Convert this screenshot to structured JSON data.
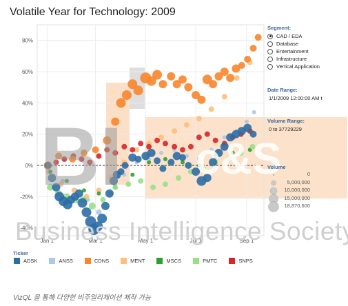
{
  "title": "Volatile Year for Technology: 2009",
  "segment": {
    "header": "Segment:",
    "options": [
      "CAD / EDA",
      "Database",
      "Entertainment",
      "Infrastructure",
      "Vertical Application"
    ],
    "selected": 0
  },
  "date_range": {
    "header": "Date Range:",
    "value": "1/1/2009 12:00:00 AM t"
  },
  "volume_range": {
    "header": "Volume Range:",
    "value": "0 to 37729229"
  },
  "volume_legend": {
    "header": "Volume",
    "items": [
      "0",
      "5,000,000",
      "10,000,000",
      "15,000,000",
      "18,870,600"
    ]
  },
  "legend": {
    "title": "Ticker",
    "items": [
      {
        "name": "ADSK",
        "color": "#2e6da4"
      },
      {
        "name": "ANSS",
        "color": "#aec7e8"
      },
      {
        "name": "CDNS",
        "color": "#f7862c"
      },
      {
        "name": "MENT",
        "color": "#ffbe7d"
      },
      {
        "name": "MSCS",
        "color": "#2ca02c"
      },
      {
        "name": "PMTC",
        "color": "#98df8a"
      },
      {
        "name": "SNPS",
        "color": "#d62728"
      }
    ]
  },
  "watermark": {
    "main": "Business Intelligence Society",
    "logo": "BI",
    "logo_right": "c&S"
  },
  "caption": "VizQL 을 통해 다양한 비주얼리제이션 제작 가능",
  "chart_data": {
    "type": "scatter",
    "x_tick_labels": [
      "Jan 1",
      "Mar 1",
      "May 1",
      "Jul 1",
      "Sep 1"
    ],
    "y_tick_labels": [
      "80%",
      "60%",
      "40%",
      "20%",
      "0%",
      "-20%",
      "-40%"
    ],
    "y_ticks": [
      80,
      60,
      40,
      20,
      0,
      -20,
      -40
    ],
    "ylim": [
      -45,
      90
    ],
    "xlim": [
      "2008-12-20",
      "2009-09-22"
    ],
    "reference_line": 0,
    "series": [
      {
        "name": "ADSK",
        "color": "#2e6da4",
        "x": [
          "2009-01-02",
          "2009-01-07",
          "2009-01-12",
          "2009-01-16",
          "2009-01-21",
          "2009-01-26",
          "2009-01-30",
          "2009-02-04",
          "2009-02-09",
          "2009-02-13",
          "2009-02-18",
          "2009-02-23",
          "2009-02-27",
          "2009-03-04",
          "2009-03-09",
          "2009-03-13",
          "2009-03-18",
          "2009-03-23",
          "2009-03-27",
          "2009-04-01",
          "2009-04-06",
          "2009-04-15",
          "2009-04-22",
          "2009-05-01",
          "2009-05-08",
          "2009-05-15",
          "2009-05-22",
          "2009-06-01",
          "2009-06-08",
          "2009-06-15",
          "2009-06-22",
          "2009-07-01",
          "2009-07-08",
          "2009-07-15",
          "2009-07-22",
          "2009-07-29",
          "2009-08-05",
          "2009-08-12",
          "2009-08-19",
          "2009-08-26",
          "2009-09-02",
          "2009-09-09"
        ],
        "y": [
          0,
          -8,
          -14,
          -20,
          -23,
          -25,
          -22,
          -20,
          -18,
          -24,
          -30,
          -36,
          -41,
          -39,
          -34,
          -26,
          -18,
          -10,
          -6,
          -4,
          0,
          5,
          4,
          6,
          8,
          3,
          -2,
          2,
          6,
          5,
          0,
          -4,
          -10,
          -8,
          2,
          8,
          12,
          18,
          20,
          22,
          24,
          20
        ],
        "size": [
          5,
          6,
          6,
          7,
          7,
          7,
          6,
          6,
          6,
          7,
          7,
          8,
          8,
          7,
          7,
          6,
          6,
          6,
          6,
          5,
          5,
          6,
          5,
          6,
          6,
          5,
          5,
          5,
          6,
          5,
          5,
          6,
          7,
          6,
          6,
          6,
          6,
          6,
          6,
          6,
          6,
          5
        ]
      },
      {
        "name": "ANSS",
        "color": "#aec7e8",
        "x": [
          "2009-01-05",
          "2009-01-20",
          "2009-02-05",
          "2009-02-20",
          "2009-03-05",
          "2009-03-20",
          "2009-04-05",
          "2009-04-20",
          "2009-05-05",
          "2009-05-20",
          "2009-06-05",
          "2009-06-20",
          "2009-07-05",
          "2009-07-20",
          "2009-08-05",
          "2009-08-20",
          "2009-09-01",
          "2009-09-10"
        ],
        "y": [
          -4,
          -10,
          -16,
          -22,
          -30,
          -18,
          -6,
          2,
          4,
          8,
          10,
          6,
          4,
          10,
          18,
          22,
          28,
          34
        ],
        "size": [
          3,
          3,
          3,
          3,
          4,
          3,
          3,
          3,
          3,
          3,
          3,
          3,
          3,
          3,
          3,
          3,
          3,
          3
        ]
      },
      {
        "name": "CDNS",
        "color": "#f7862c",
        "x": [
          "2009-01-02",
          "2009-01-15",
          "2009-02-01",
          "2009-02-15",
          "2009-03-01",
          "2009-03-15",
          "2009-03-25",
          "2009-04-01",
          "2009-04-08",
          "2009-04-15",
          "2009-04-22",
          "2009-05-01",
          "2009-05-08",
          "2009-05-15",
          "2009-05-22",
          "2009-06-01",
          "2009-06-08",
          "2009-06-15",
          "2009-06-22",
          "2009-07-01",
          "2009-07-08",
          "2009-07-15",
          "2009-07-22",
          "2009-07-29",
          "2009-08-05",
          "2009-08-12",
          "2009-08-19",
          "2009-08-26",
          "2009-09-02",
          "2009-09-09",
          "2009-09-15"
        ],
        "y": [
          0,
          6,
          4,
          8,
          10,
          16,
          28,
          40,
          45,
          52,
          48,
          56,
          54,
          58,
          52,
          57,
          52,
          55,
          50,
          45,
          42,
          55,
          52,
          57,
          60,
          56,
          62,
          64,
          68,
          75,
          82
        ],
        "size": [
          6,
          5,
          5,
          5,
          5,
          6,
          6,
          7,
          7,
          7,
          7,
          8,
          7,
          7,
          6,
          6,
          6,
          6,
          6,
          6,
          6,
          7,
          6,
          6,
          6,
          6,
          6,
          5,
          5,
          5,
          5
        ]
      },
      {
        "name": "MENT",
        "color": "#ffbe7d",
        "x": [
          "2009-01-03",
          "2009-01-18",
          "2009-02-03",
          "2009-02-18",
          "2009-03-05",
          "2009-03-20",
          "2009-04-05",
          "2009-04-20",
          "2009-05-05",
          "2009-05-20",
          "2009-06-05",
          "2009-06-20",
          "2009-07-05",
          "2009-07-20",
          "2009-08-05",
          "2009-08-20",
          "2009-09-05"
        ],
        "y": [
          -4,
          -12,
          -16,
          -20,
          -16,
          -8,
          2,
          10,
          14,
          18,
          22,
          26,
          30,
          36,
          44,
          56,
          66
        ],
        "size": [
          4,
          4,
          4,
          4,
          4,
          4,
          4,
          4,
          4,
          4,
          4,
          4,
          4,
          4,
          4,
          4,
          4
        ]
      },
      {
        "name": "MSCS",
        "color": "#2ca02c",
        "x": [
          "2009-01-05",
          "2009-01-25",
          "2009-02-15",
          "2009-03-05",
          "2009-03-25",
          "2009-04-15",
          "2009-05-05",
          "2009-05-25",
          "2009-06-15",
          "2009-07-05",
          "2009-07-25",
          "2009-08-15",
          "2009-09-05"
        ],
        "y": [
          -4,
          -10,
          -16,
          -18,
          -14,
          -6,
          2,
          4,
          2,
          0,
          6,
          8,
          10
        ],
        "size": [
          3,
          3,
          3,
          3,
          3,
          3,
          3,
          3,
          3,
          3,
          3,
          3,
          3
        ]
      },
      {
        "name": "PMTC",
        "color": "#98df8a",
        "x": [
          "2009-01-05",
          "2009-01-15",
          "2009-01-25",
          "2009-02-05",
          "2009-02-15",
          "2009-02-25",
          "2009-03-10",
          "2009-03-25",
          "2009-04-10",
          "2009-04-25",
          "2009-05-10",
          "2009-05-25",
          "2009-06-10",
          "2009-06-25",
          "2009-07-10",
          "2009-07-25",
          "2009-08-10",
          "2009-08-25",
          "2009-09-08"
        ],
        "y": [
          -14,
          -18,
          -20,
          -22,
          -22,
          -26,
          -22,
          -14,
          -12,
          -10,
          -14,
          -12,
          -8,
          -4,
          -2,
          2,
          4,
          8,
          12
        ],
        "size": [
          5,
          5,
          5,
          5,
          5,
          5,
          4,
          4,
          4,
          4,
          4,
          4,
          4,
          4,
          4,
          4,
          4,
          4,
          4
        ]
      },
      {
        "name": "SNPS",
        "color": "#d62728",
        "x": [
          "2009-01-02",
          "2009-01-12",
          "2009-01-22",
          "2009-02-02",
          "2009-02-12",
          "2009-02-22",
          "2009-03-05",
          "2009-03-15",
          "2009-03-25",
          "2009-04-05",
          "2009-04-15",
          "2009-04-25",
          "2009-05-05",
          "2009-05-15",
          "2009-05-25",
          "2009-06-05",
          "2009-06-15",
          "2009-06-25",
          "2009-07-05",
          "2009-07-15",
          "2009-07-25",
          "2009-08-05",
          "2009-08-15",
          "2009-08-25",
          "2009-09-05"
        ],
        "y": [
          0,
          2,
          4,
          6,
          4,
          2,
          6,
          10,
          8,
          12,
          10,
          14,
          12,
          16,
          14,
          12,
          10,
          12,
          18,
          20,
          16,
          14,
          18,
          20,
          22
        ],
        "size": [
          4,
          4,
          4,
          4,
          4,
          4,
          4,
          4,
          4,
          4,
          4,
          4,
          4,
          4,
          4,
          4,
          4,
          4,
          4,
          4,
          4,
          4,
          4,
          4,
          4
        ]
      }
    ]
  }
}
